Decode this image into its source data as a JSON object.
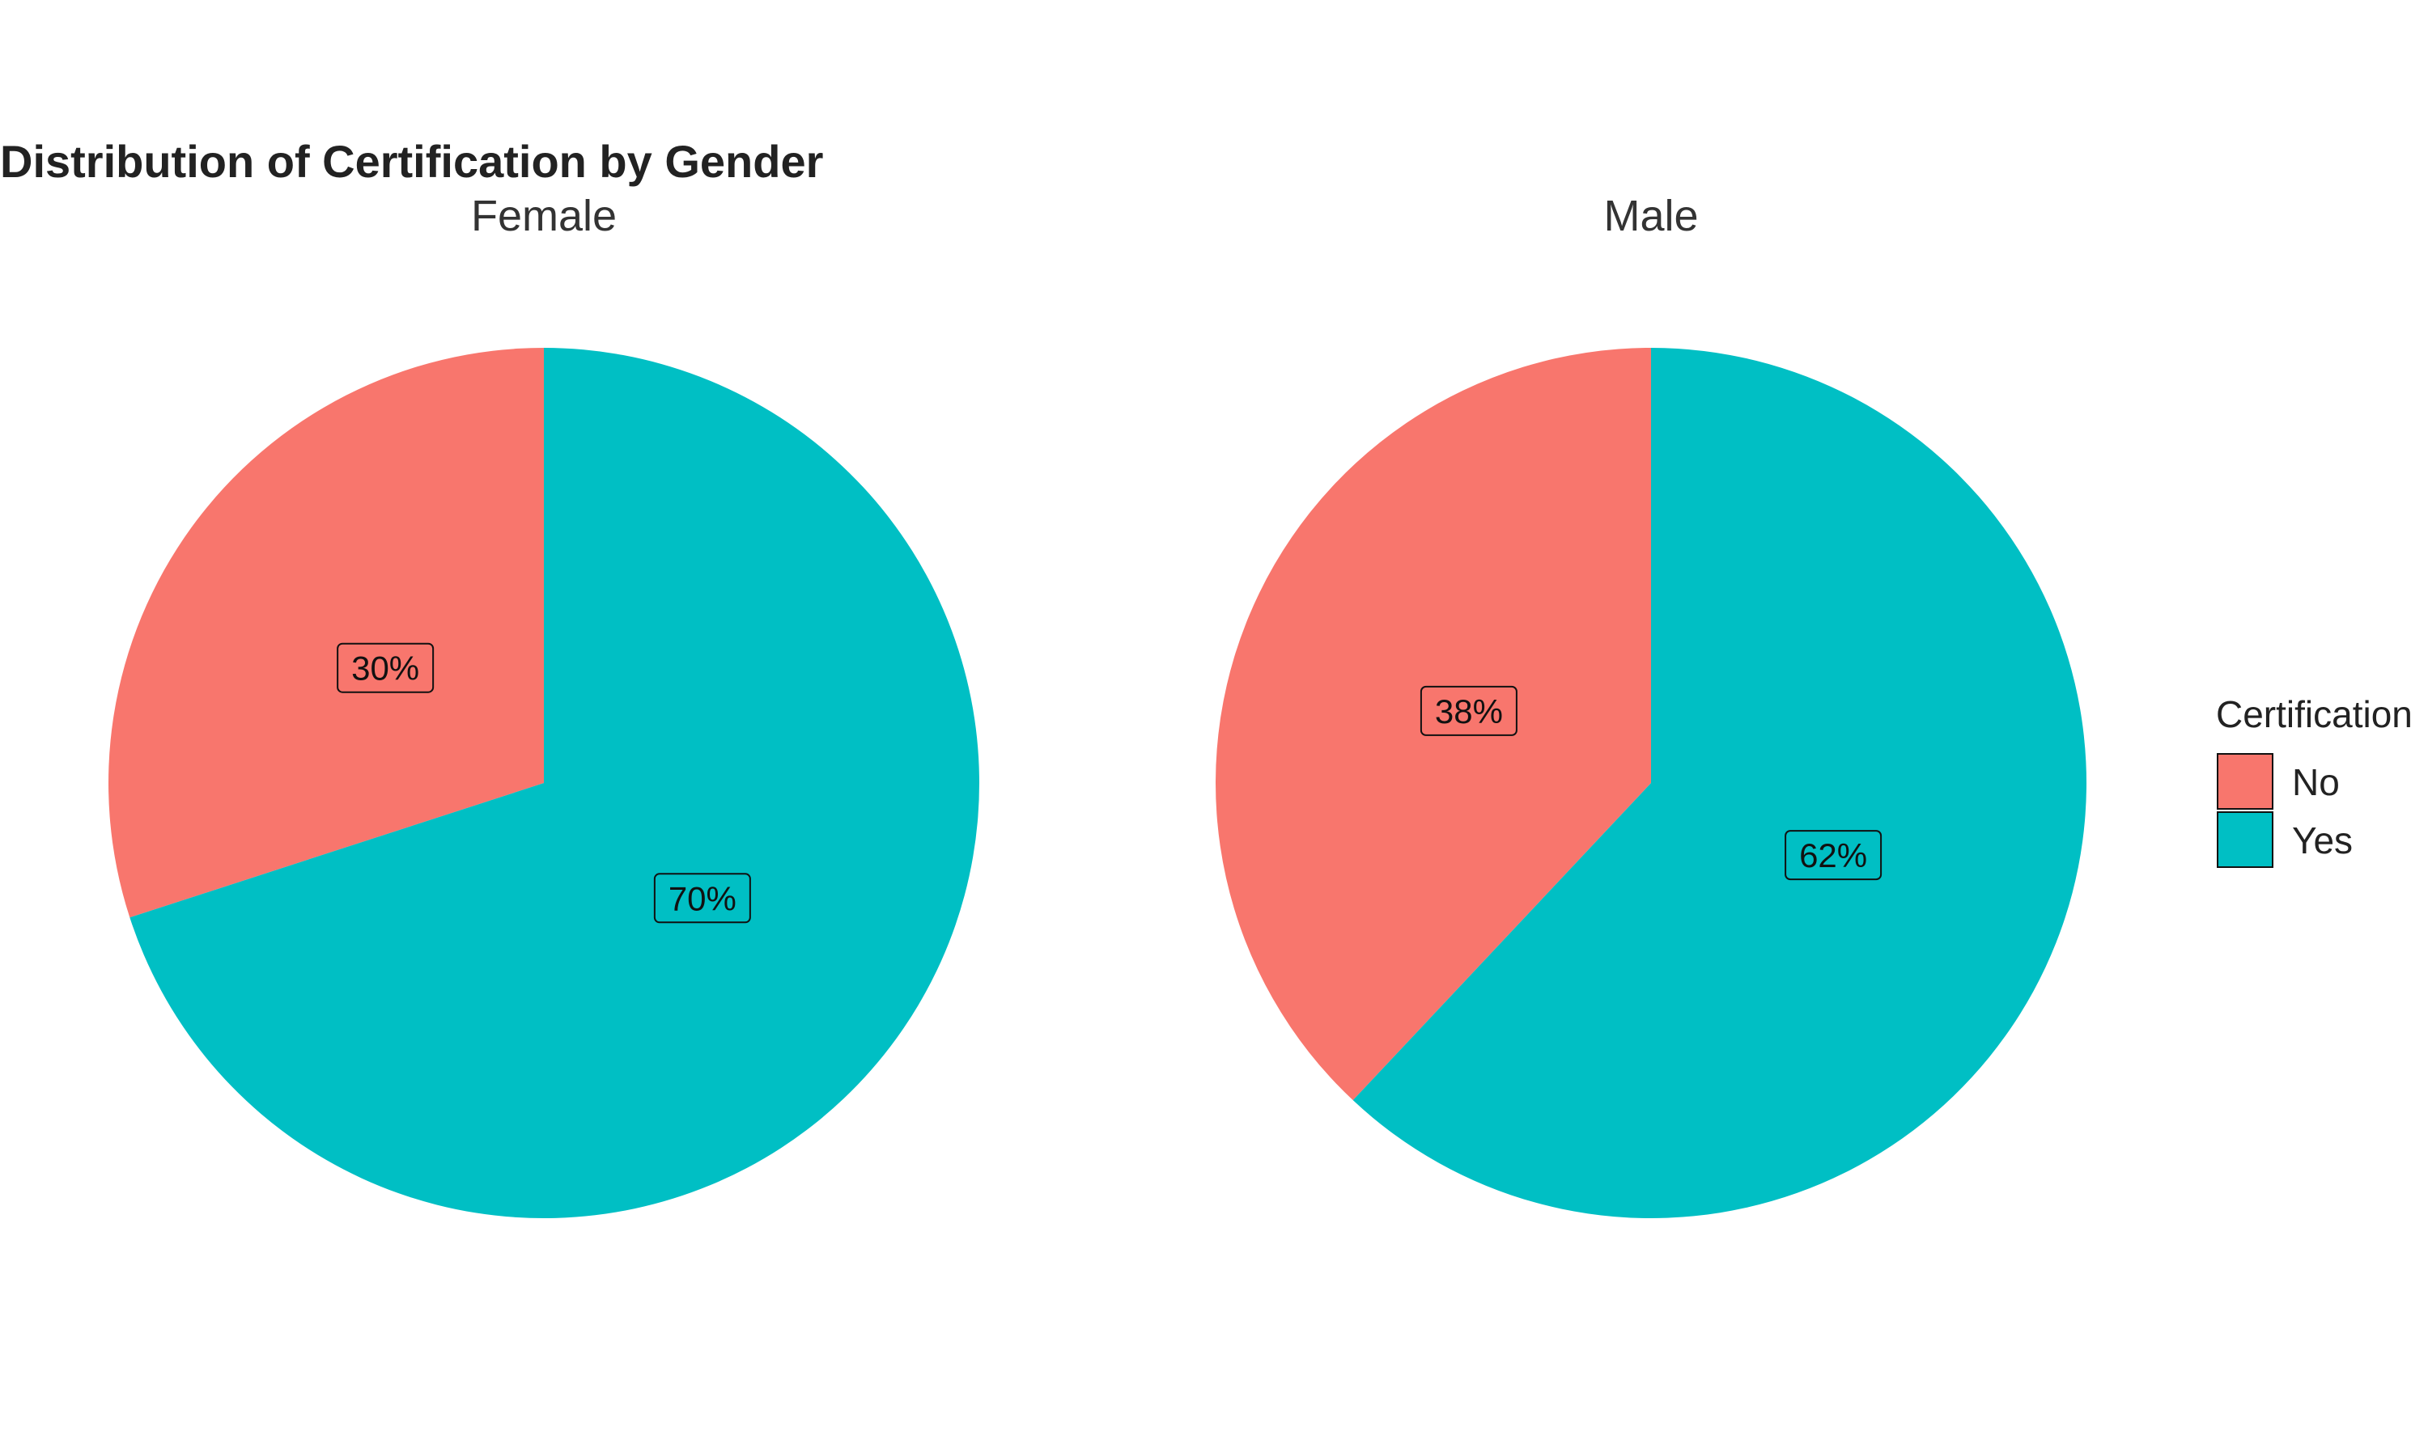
{
  "colors": {
    "No": "#F8766D",
    "Yes": "#00BFC4"
  },
  "chart_data": {
    "type": "pie",
    "title": "Distribution of Certification by Gender",
    "legend": {
      "title": "Certification",
      "position": "right",
      "entries": [
        "No",
        "Yes"
      ]
    },
    "panels": [
      {
        "facet": "Female",
        "slices": [
          {
            "category": "No",
            "value": 30,
            "label": "30%"
          },
          {
            "category": "Yes",
            "value": 70,
            "label": "70%"
          }
        ]
      },
      {
        "facet": "Male",
        "slices": [
          {
            "category": "No",
            "value": 38,
            "label": "38%"
          },
          {
            "category": "Yes",
            "value": 62,
            "label": "62%"
          }
        ]
      }
    ]
  }
}
